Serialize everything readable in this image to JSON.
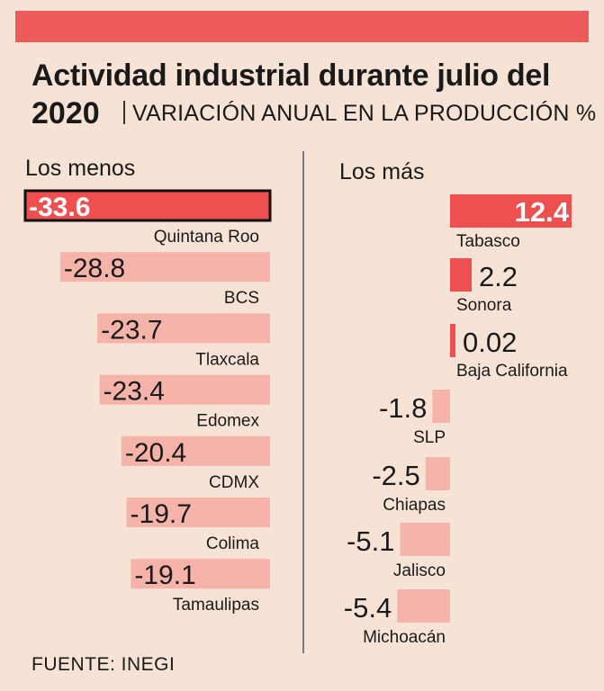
{
  "title_line1": "Actividad industrial durante julio del",
  "title_line2": "2020",
  "subtitle": "VARIACIÓN ANUAL EN LA PRODUCCIÓN %",
  "left_heading": "Los menos",
  "right_heading": "Los más",
  "footer": "FUENTE: INEGI",
  "colors": {
    "strong": "#ee4f4f",
    "light": "#f5b3a9",
    "band": "#ee5a5a",
    "background": "#f7e3d6"
  },
  "chart_data": {
    "type": "bar",
    "title": "Actividad industrial durante julio del 2020",
    "subtitle": "VARIACIÓN ANUAL EN LA PRODUCCIÓN %",
    "unit": "%",
    "panels": [
      {
        "name": "Los menos",
        "categories": [
          "Quintana Roo",
          "BCS",
          "Tlaxcala",
          "Edomex",
          "CDMX",
          "Colima",
          "Tamaulipas"
        ],
        "values": [
          -33.6,
          -28.8,
          -23.7,
          -23.4,
          -20.4,
          -19.7,
          -19.1
        ],
        "labels": [
          "-33.6",
          "-28.8",
          "-23.7",
          "-23.4",
          "-20.4",
          "-19.7",
          "-19.1"
        ]
      },
      {
        "name": "Los más",
        "categories": [
          "Tabasco",
          "Sonora",
          "Baja California",
          "SLP",
          "Chiapas",
          "Jalisco",
          "Michoacán"
        ],
        "values": [
          12.4,
          2.2,
          0.02,
          -1.8,
          -2.5,
          -5.1,
          -5.4
        ],
        "labels": [
          "12.4",
          "2.2",
          "0.02",
          "-1.8",
          "-2.5",
          "-5.1",
          "-5.4"
        ]
      }
    ]
  }
}
